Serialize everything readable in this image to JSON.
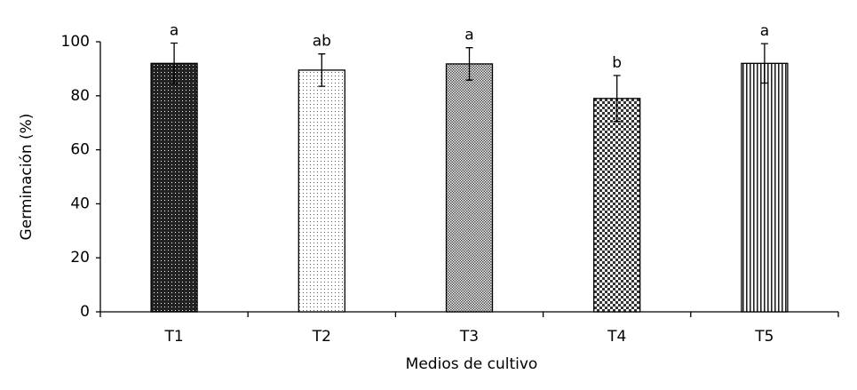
{
  "chart_data": {
    "type": "bar",
    "x_label": "Medios de cultivo",
    "y_label": "Germinación (%)",
    "categories": [
      "T1",
      "T2",
      "T3",
      "T4",
      "T5"
    ],
    "values": [
      92,
      89.5,
      91.8,
      79,
      92
    ],
    "errors": [
      7.5,
      6,
      6,
      8.5,
      7.3
    ],
    "letters": [
      "a",
      "ab",
      "a",
      "b",
      "a"
    ],
    "color": "#000000",
    "ylim": [
      0,
      100
    ],
    "yticks": [
      0,
      20,
      40,
      60,
      80,
      100
    ],
    "grid": false
  }
}
